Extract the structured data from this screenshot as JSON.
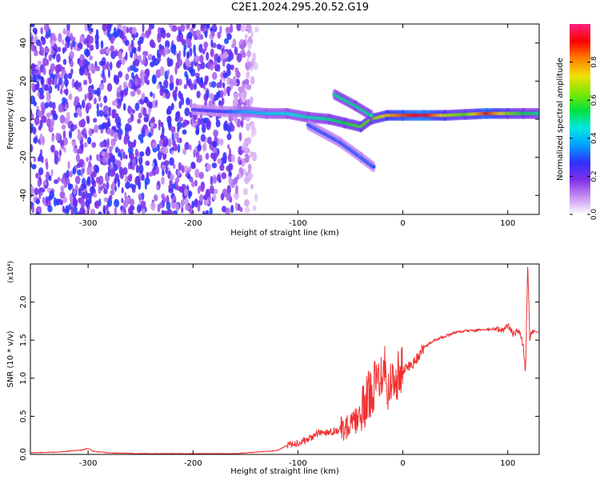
{
  "figure": {
    "title": "C2E1.2024.295.20.52.G19"
  },
  "chart_data": [
    {
      "type": "heatmap",
      "title": "C2E1.2024.295.20.52.G19",
      "xlabel": "Height of straight line (km)",
      "ylabel": "Frequency (Hz)",
      "xlim": [
        -355,
        130
      ],
      "ylim": [
        -50,
        50
      ],
      "xticks": [
        -300,
        -200,
        -100,
        0,
        100
      ],
      "yticks": [
        -40,
        -20,
        0,
        20,
        40
      ],
      "colorbar": {
        "label": "Normalized spectral amplitude",
        "range": [
          0,
          1
        ],
        "ticks": [
          "0.0",
          "0.2",
          "0.4",
          "0.6",
          "0.8"
        ],
        "tick_values": [
          0.0,
          0.2,
          0.4,
          0.6,
          0.8
        ],
        "colors": [
          "#ffffff",
          "#c890f0",
          "#8030e8",
          "#3030ff",
          "#00a0ff",
          "#00e8e0",
          "#00e040",
          "#80e800",
          "#f0e000",
          "#ff8000",
          "#ff0000",
          "#ff2080"
        ]
      },
      "noise_region": {
        "x": [
          -355,
          -135
        ],
        "y": [
          -50,
          50
        ],
        "amplitude": 0.22
      },
      "signal_trace": [
        {
          "x": -200,
          "y": 5,
          "amp": 0.25
        },
        {
          "x": -170,
          "y": 4,
          "amp": 0.28
        },
        {
          "x": -150,
          "y": 4,
          "amp": 0.38
        },
        {
          "x": -130,
          "y": 3,
          "amp": 0.42
        },
        {
          "x": -110,
          "y": 3,
          "amp": 0.45
        },
        {
          "x": -90,
          "y": 1,
          "amp": 0.48
        },
        {
          "x": -70,
          "y": 0,
          "amp": 0.5
        },
        {
          "x": -55,
          "y": -2,
          "amp": 0.55
        },
        {
          "x": -40,
          "y": -4,
          "amp": 0.6
        },
        {
          "x": -30,
          "y": 0,
          "amp": 0.62
        },
        {
          "x": -15,
          "y": 2,
          "amp": 0.75
        },
        {
          "x": 0,
          "y": 2,
          "amp": 0.85
        },
        {
          "x": 20,
          "y": 2,
          "amp": 0.95
        },
        {
          "x": 40,
          "y": 2,
          "amp": 0.7
        },
        {
          "x": 60,
          "y": 2.5,
          "amp": 0.6
        },
        {
          "x": 80,
          "y": 3,
          "amp": 0.9
        },
        {
          "x": 100,
          "y": 3,
          "amp": 0.65
        },
        {
          "x": 115,
          "y": 3,
          "amp": 0.55
        },
        {
          "x": 130,
          "y": 3,
          "amp": 0.5
        }
      ],
      "branches": [
        {
          "points": [
            {
              "x": -65,
              "y": 13
            },
            {
              "x": -45,
              "y": 7
            },
            {
              "x": -30,
              "y": 2
            }
          ],
          "amp": 0.5
        },
        {
          "points": [
            {
              "x": -90,
              "y": -3
            },
            {
              "x": -60,
              "y": -12
            },
            {
              "x": -40,
              "y": -20
            },
            {
              "x": -28,
              "y": -25
            }
          ],
          "amp": 0.3
        }
      ]
    },
    {
      "type": "line",
      "xlabel": "Height of straight line (km)",
      "ylabel": "SNR (10 * v/v)",
      "yscale_label": "(x10⁴)",
      "xlim": [
        -355,
        130
      ],
      "ylim": [
        0,
        2.5
      ],
      "xticks": [
        -300,
        -200,
        -100,
        0,
        100
      ],
      "yticks": [
        0.0,
        0.5,
        1.0,
        1.5,
        2.0
      ],
      "color": "#f03030",
      "series": [
        {
          "x": [
            -355,
            -330,
            -320,
            -305,
            -300,
            -295,
            -280,
            -250,
            -200,
            -160,
            -120,
            -110,
            -100,
            -90,
            -80,
            -70,
            -60,
            -50,
            -40,
            -35,
            -30,
            -25,
            -20,
            -18,
            -15,
            -10,
            -5,
            0,
            10,
            20,
            30,
            40,
            50,
            60,
            70,
            80,
            90,
            95,
            100,
            105,
            110,
            113,
            115,
            117,
            118,
            119,
            120,
            121,
            122,
            125,
            130
          ],
          "y": [
            0.02,
            0.03,
            0.04,
            0.06,
            0.08,
            0.04,
            0.02,
            0.01,
            0.01,
            0.01,
            0.05,
            0.12,
            0.15,
            0.2,
            0.28,
            0.3,
            0.32,
            0.38,
            0.5,
            0.7,
            0.85,
            0.95,
            1.1,
            1.3,
            0.85,
            0.95,
            1.05,
            1.1,
            1.2,
            1.4,
            1.5,
            1.55,
            1.6,
            1.62,
            1.63,
            1.64,
            1.65,
            1.62,
            1.7,
            1.58,
            1.62,
            1.55,
            1.4,
            1.05,
            1.8,
            2.5,
            2.05,
            1.5,
            1.6,
            1.62,
            1.6
          ]
        }
      ]
    }
  ]
}
